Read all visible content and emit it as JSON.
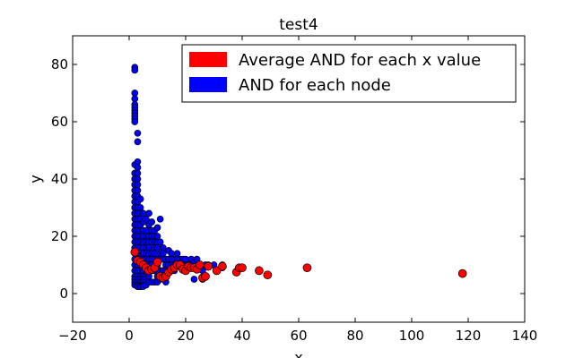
{
  "chart_data": {
    "type": "scatter",
    "title": "test4",
    "xlabel": "x",
    "ylabel": "y",
    "xlim": [
      -20,
      140
    ],
    "ylim": [
      -10,
      90
    ],
    "xticks": [
      -20,
      0,
      20,
      40,
      60,
      80,
      100,
      120,
      140
    ],
    "yticks": [
      0,
      20,
      40,
      60,
      80
    ],
    "grid": false,
    "legend_position": "top-right",
    "series": [
      {
        "name": "AND for each node",
        "color": "#0000ff",
        "x": [
          2,
          2,
          2,
          2,
          2,
          2,
          2,
          2,
          2,
          2,
          2,
          2,
          2,
          2,
          2,
          2,
          2,
          2,
          2,
          2,
          2,
          2,
          2,
          2,
          2,
          2,
          2,
          2,
          2,
          2,
          2,
          2,
          2,
          2,
          2,
          2,
          2,
          2,
          2,
          2,
          2,
          2,
          3,
          3,
          3,
          3,
          3,
          3,
          3,
          3,
          3,
          3,
          3,
          3,
          3,
          3,
          3,
          3,
          3,
          3,
          3,
          3,
          3,
          3,
          3,
          3,
          3,
          3,
          3,
          3,
          3,
          3,
          4,
          4,
          4,
          4,
          4,
          4,
          4,
          4,
          4,
          4,
          4,
          4,
          4,
          4,
          4,
          4,
          4,
          4,
          4,
          4,
          4,
          4,
          4,
          4,
          4,
          4,
          4,
          4,
          5,
          5,
          5,
          5,
          5,
          5,
          5,
          5,
          5,
          5,
          5,
          5,
          5,
          5,
          5,
          5,
          6,
          6,
          6,
          6,
          6,
          6,
          6,
          6,
          6,
          6,
          6,
          6,
          6,
          6,
          7,
          7,
          7,
          7,
          7,
          7,
          7,
          7,
          7,
          7,
          7,
          8,
          8,
          8,
          8,
          8,
          8,
          8,
          8,
          8,
          9,
          9,
          9,
          9,
          9,
          9,
          9,
          9,
          10,
          10,
          10,
          10,
          10,
          10,
          10,
          10,
          11,
          11,
          11,
          11,
          11,
          11,
          12,
          12,
          12,
          12,
          12,
          13,
          13,
          13,
          13,
          13,
          14,
          14,
          14,
          14,
          15,
          15,
          15,
          15,
          16,
          16,
          16,
          17,
          17,
          17,
          18,
          18,
          19,
          19,
          20,
          20,
          21,
          22,
          22,
          23,
          23,
          24,
          24,
          26,
          26,
          27,
          28,
          30,
          33,
          33
        ],
        "y": [
          79,
          78,
          70,
          68,
          66,
          65,
          64,
          63,
          62,
          61,
          60,
          42,
          40,
          38,
          36,
          34,
          32,
          30,
          28,
          26,
          24,
          22,
          20,
          18,
          16,
          14,
          12,
          10,
          8,
          6,
          5,
          4,
          3,
          45,
          42,
          40,
          38,
          36,
          34,
          32,
          30,
          28,
          56,
          53,
          46,
          44,
          42,
          40,
          38,
          36,
          34,
          32,
          30,
          28,
          26,
          24,
          22,
          20,
          18,
          16,
          14,
          12,
          10,
          8,
          6,
          5,
          4,
          3,
          3,
          2.5,
          2.5,
          2.5,
          33,
          30,
          28,
          26,
          24,
          22,
          20,
          18,
          16,
          14,
          12,
          10,
          8,
          6,
          5,
          4,
          3,
          2.5,
          2.5,
          2.5,
          2.5,
          2.5,
          2.5,
          2.5,
          2.5,
          2.5,
          2.5,
          2.5,
          28,
          25,
          22,
          20,
          18,
          16,
          14,
          12,
          10,
          8,
          6,
          5,
          4,
          3,
          3,
          2.5,
          26,
          22,
          20,
          18,
          16,
          14,
          12,
          10,
          8,
          6,
          5,
          4,
          3,
          3,
          28,
          24,
          20,
          18,
          16,
          14,
          12,
          10,
          8,
          6,
          4,
          25,
          22,
          20,
          18,
          14,
          12,
          10,
          8,
          4,
          22,
          20,
          18,
          16,
          14,
          12,
          8,
          4,
          23,
          20,
          18,
          16,
          12,
          10,
          6,
          4,
          26,
          18,
          14,
          12,
          8,
          5,
          16,
          14,
          12,
          8,
          6,
          12,
          10,
          8,
          6,
          4,
          15,
          12,
          10,
          8,
          14,
          12,
          10,
          8,
          12,
          10,
          8,
          14,
          12,
          10,
          12,
          10,
          12,
          10,
          12,
          10,
          10,
          12,
          10,
          5,
          11,
          12,
          10,
          8,
          5,
          10,
          10,
          10,
          10,
          9
        ]
      },
      {
        "name": "Average AND for each x value",
        "color": "#ff0000",
        "x": [
          2,
          3,
          4,
          5,
          6,
          7,
          8,
          9,
          10,
          11,
          12,
          13,
          14,
          15,
          16,
          17,
          18,
          19,
          20,
          21,
          22,
          23,
          24,
          25,
          26,
          27,
          28,
          31,
          33,
          38,
          39,
          40,
          46,
          49,
          63,
          118
        ],
        "y": [
          14.5,
          11.5,
          11,
          10,
          9,
          8,
          8.5,
          9,
          11,
          6,
          5.5,
          6,
          7.5,
          8.5,
          9,
          10,
          10,
          8.5,
          8,
          9.5,
          9,
          9,
          8.5,
          10,
          5.5,
          6,
          9.5,
          8,
          9.5,
          7.5,
          9,
          9,
          8,
          6.5,
          9,
          7
        ]
      }
    ]
  }
}
